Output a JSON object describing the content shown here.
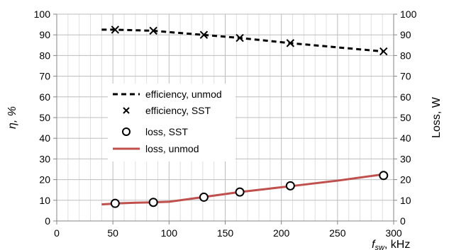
{
  "chart_data": {
    "type": "line",
    "x_axis": {
      "label": "f",
      "label_subscript": "sw",
      "label_unit": ", kHz",
      "min": 0,
      "max": 300,
      "ticks": [
        0,
        50,
        100,
        150,
        200,
        250,
        300
      ],
      "tick_labels": [
        "0",
        "50",
        "100",
        "150",
        "200",
        "250",
        "300"
      ]
    },
    "y_left": {
      "label": "η, %",
      "min": 0,
      "max": 100,
      "ticks": [
        0,
        10,
        20,
        30,
        40,
        50,
        60,
        70,
        80,
        90,
        100
      ],
      "tick_labels": [
        "0",
        "10",
        "20",
        "30",
        "40",
        "50",
        "60",
        "70",
        "80",
        "90",
        "100"
      ]
    },
    "y_right": {
      "label": "Loss, W",
      "min": 0,
      "max": 100,
      "ticks": [
        0,
        10,
        20,
        30,
        40,
        50,
        60,
        70,
        80,
        90,
        100
      ],
      "tick_labels": [
        "0",
        "10",
        "20",
        "30",
        "40",
        "50",
        "60",
        "70",
        "80",
        "90",
        "100"
      ]
    },
    "grid": true,
    "legend_position": "center-left",
    "series": [
      {
        "name": "efficiency, unmod",
        "style": "dashed-line",
        "color": "#000000",
        "x": [
          40,
          50,
          85,
          130,
          163,
          208,
          290
        ],
        "y": [
          92.5,
          92.5,
          92,
          90,
          88.5,
          86,
          82
        ]
      },
      {
        "name": "efficiency, SST",
        "style": "x-marker",
        "color": "#000000",
        "x": [
          52,
          86,
          131,
          163,
          208,
          291
        ],
        "y": [
          92.5,
          92,
          90,
          88.5,
          86,
          82
        ]
      },
      {
        "name": "loss, SST",
        "style": "circle-marker",
        "color": "#000000",
        "x": [
          52,
          86,
          131,
          163,
          208,
          291
        ],
        "y": [
          8.5,
          9,
          11.5,
          14,
          17,
          22
        ]
      },
      {
        "name": "loss, unmod",
        "style": "solid-line",
        "color": "#c0504d",
        "x": [
          40,
          55,
          70,
          85,
          100,
          130,
          163,
          208,
          250,
          290
        ],
        "y": [
          8,
          8.5,
          8.8,
          9,
          9.3,
          11.5,
          14,
          16.8,
          19.5,
          22.5
        ]
      }
    ]
  }
}
